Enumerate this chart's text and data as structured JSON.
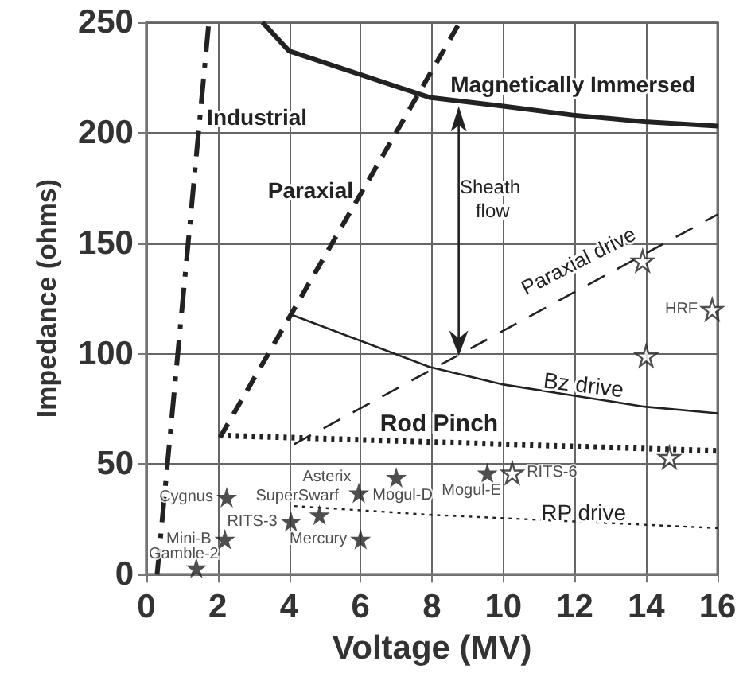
{
  "chart_data": {
    "type": "line",
    "xlabel": "Voltage (MV)",
    "ylabel": "Impedance (ohms)",
    "xlim": [
      0,
      16
    ],
    "xticks": [
      0,
      2,
      4,
      6,
      8,
      10,
      12,
      14,
      16
    ],
    "ylim": [
      0,
      250
    ],
    "yticks": [
      0,
      50,
      100,
      150,
      200,
      250
    ],
    "grid": true,
    "annotations": [
      "Industrial",
      "Paraxial",
      "Magnetically Immersed",
      "Sheath flow",
      "Paraxial drive",
      "Bz drive",
      "Rod Pinch",
      "RP drive"
    ],
    "series": [
      {
        "color": "#222222",
        "line_style": "dashdot",
        "x": [
          0.3,
          1.75
        ],
        "values": [
          0,
          250
        ]
      },
      {
        "color": "#222222",
        "line_style": "dashed",
        "x": [
          2.06,
          8.78
        ],
        "values": [
          62,
          250
        ]
      },
      {
        "color": "#222222",
        "line_style": "solid",
        "x": [
          3.25,
          4.0,
          7.93,
          10.0,
          11.95,
          13.95,
          16
        ],
        "values": [
          250,
          237,
          216,
          212,
          208,
          205,
          203
        ]
      },
      {
        "color": "#222222",
        "line_style": "solid",
        "x": [
          4.0,
          7.93,
          10.0,
          13.95,
          16
        ],
        "values": [
          118,
          94,
          86,
          76,
          73
        ]
      },
      {
        "color": "#222222",
        "line_style": "dashed",
        "x": [
          4.14,
          16
        ],
        "values": [
          59,
          163
        ]
      },
      {
        "color": "#222222",
        "line_style": "dotted",
        "x": [
          2.06,
          8,
          16
        ],
        "values": [
          63,
          60,
          56
        ]
      },
      {
        "color": "#222222",
        "line_style": "dotted",
        "x": [
          4.14,
          8,
          12,
          16
        ],
        "values": [
          31,
          27,
          24,
          21
        ]
      },
      {
        "type": "scatter",
        "marker": "star",
        "color": "#222222",
        "x": [
          1.4,
          2.2,
          2.25,
          4.05,
          4.85,
          6.0,
          5.95,
          7.0,
          9.55
        ],
        "values": [
          3,
          16,
          35,
          24,
          27,
          16,
          37,
          44,
          46
        ],
        "value_labels": [
          "Gamble-2",
          "Mini-B",
          "Cygnus",
          "RITS-3",
          "SuperSwarf",
          "Mercury",
          "Asterix",
          "Mogul-D",
          "Mogul-E"
        ]
      },
      {
        "type": "scatter",
        "marker": "star",
        "color": "#ffffff",
        "x": [
          10.25,
          15.85,
          13.9,
          14.0,
          14.65
        ],
        "values": [
          46,
          120,
          142,
          99,
          53
        ],
        "value_labels": [
          "RITS-6",
          "HRF",
          null,
          null,
          null
        ]
      }
    ]
  }
}
